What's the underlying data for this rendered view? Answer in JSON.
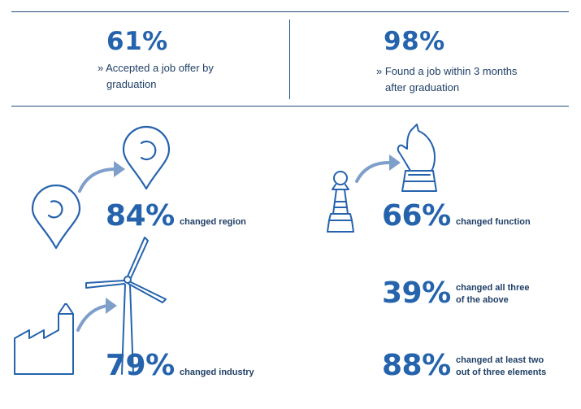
{
  "colors": {
    "primary": "#2563ad",
    "text": "#1f3f66",
    "line": "#1f4e79",
    "arrow": "#7f9fcb"
  },
  "top": {
    "left": {
      "percent": "61%",
      "line1": "» Accepted a job offer by",
      "line2": "graduation"
    },
    "right": {
      "percent": "98%",
      "line1": "» Found a job within 3 months",
      "line2": "after graduation"
    }
  },
  "stats": {
    "region": {
      "percent": "84%",
      "label": "changed region",
      "icon": "location-pin-icon"
    },
    "function": {
      "percent": "66%",
      "label": "changed function",
      "icon": "chess-piece-icon"
    },
    "industry": {
      "percent": "79%",
      "label": "changed industry",
      "icon": "factory-wind-turbine-icon"
    },
    "all_three": {
      "percent": "39%",
      "label_line1": "changed all three",
      "label_line2": "of the above"
    },
    "two_of_three": {
      "percent": "88%",
      "label_line1": "changed at least two",
      "label_line2": "out of three elements"
    }
  }
}
